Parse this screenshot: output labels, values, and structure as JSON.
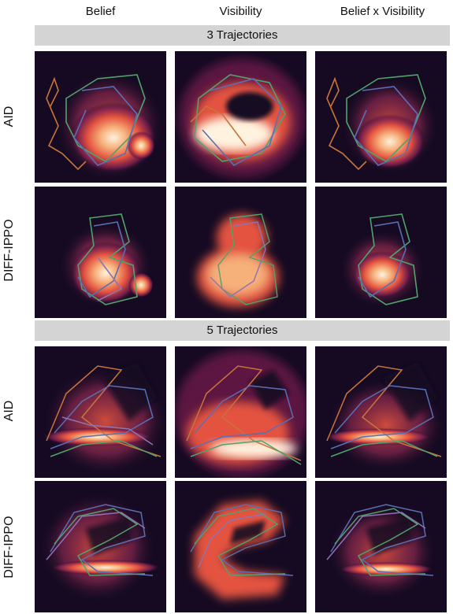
{
  "columns": [
    "Belief",
    "Visibility",
    "Belief x Visibility"
  ],
  "sections": [
    {
      "title": "3 Trajectories",
      "rows": [
        "AID",
        "DIFF-IPPO"
      ]
    },
    {
      "title": "5 Trajectories",
      "rows": [
        "AID",
        "DIFF-IPPO"
      ]
    }
  ],
  "colors": {
    "background": "#150a22",
    "heat_low": "#7a1f4f",
    "heat_mid": "#e3523f",
    "heat_high": "#fff3df",
    "traj_green": "#4fa36b",
    "traj_blue": "#5a6fb3",
    "traj_orange": "#c9743a",
    "traj_purple": "#8e73b5",
    "banner": "#d4d4d4"
  }
}
